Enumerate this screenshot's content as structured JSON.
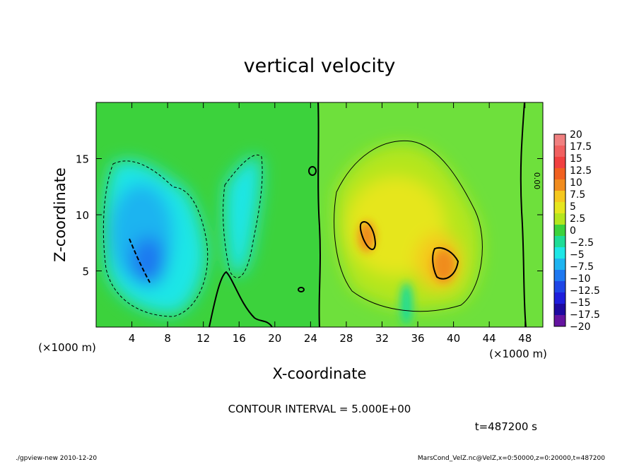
{
  "chart_data": {
    "type": "heatmap",
    "title": "vertical velocity",
    "xlabel": "X-coordinate",
    "ylabel": "Z-coordinate",
    "x_unit_left": "(×1000 m)",
    "x_unit_right": "(×1000 m)",
    "xlim": [
      0,
      50
    ],
    "ylim": [
      0,
      20
    ],
    "x_ticks": [
      4,
      8,
      12,
      16,
      20,
      24,
      28,
      32,
      36,
      40,
      44,
      48
    ],
    "x_tick_labels": [
      "4",
      "8",
      "12",
      "16",
      "20",
      "24",
      "28",
      "32",
      "36",
      "40",
      "44",
      "48"
    ],
    "y_ticks": [
      5,
      10,
      15
    ],
    "y_tick_labels": [
      "5",
      "10",
      "15"
    ],
    "contour_interval_text": "CONTOUR INTERVAL = 5.000E+00",
    "contour_label": "0.00",
    "time_text": "t=487200 s",
    "colorbar": {
      "levels": [
        20,
        17.5,
        15,
        12.5,
        10,
        7.5,
        5,
        2.5,
        0,
        -2.5,
        -5,
        -7.5,
        -10,
        -12.5,
        -15,
        -17.5,
        -20
      ],
      "labels": [
        "20",
        "17.5",
        "15",
        "12.5",
        "10",
        "7.5",
        "5",
        "2.5",
        "0",
        "−2.5",
        "−5",
        "−7.5",
        "−10",
        "−12.5",
        "−15",
        "−17.5",
        "−20"
      ],
      "colors": [
        "#f08080",
        "#f06060",
        "#f04040",
        "#f06020",
        "#f08c1e",
        "#f5c81e",
        "#e6e61e",
        "#b4e61e",
        "#3cd23c",
        "#1edc96",
        "#1ee6e6",
        "#1eb4f0",
        "#1e78f0",
        "#1e46e6",
        "#1e1edc",
        "#1e0aa0",
        "#6414a0"
      ]
    },
    "features": [
      {
        "name": "downdraft-west",
        "x": 7,
        "z": 8,
        "w": -10
      },
      {
        "name": "downdraft-west-weak",
        "x": 15,
        "z": 10,
        "w": -5
      },
      {
        "name": "updraft-core-a",
        "x": 30,
        "z": 8,
        "w": 10
      },
      {
        "name": "updraft-core-b",
        "x": 39.5,
        "z": 6,
        "w": 10
      },
      {
        "name": "updraft-region",
        "x": 34,
        "z": 10,
        "w": 5
      },
      {
        "name": "downdraft-low",
        "x": 34,
        "z": 2,
        "w": -5
      }
    ]
  },
  "footer": {
    "left": "./gpview-new   2010-12-20",
    "right": "MarsCond_VelZ.nc@VelZ,x=0:50000,z=0:20000,t=487200"
  }
}
